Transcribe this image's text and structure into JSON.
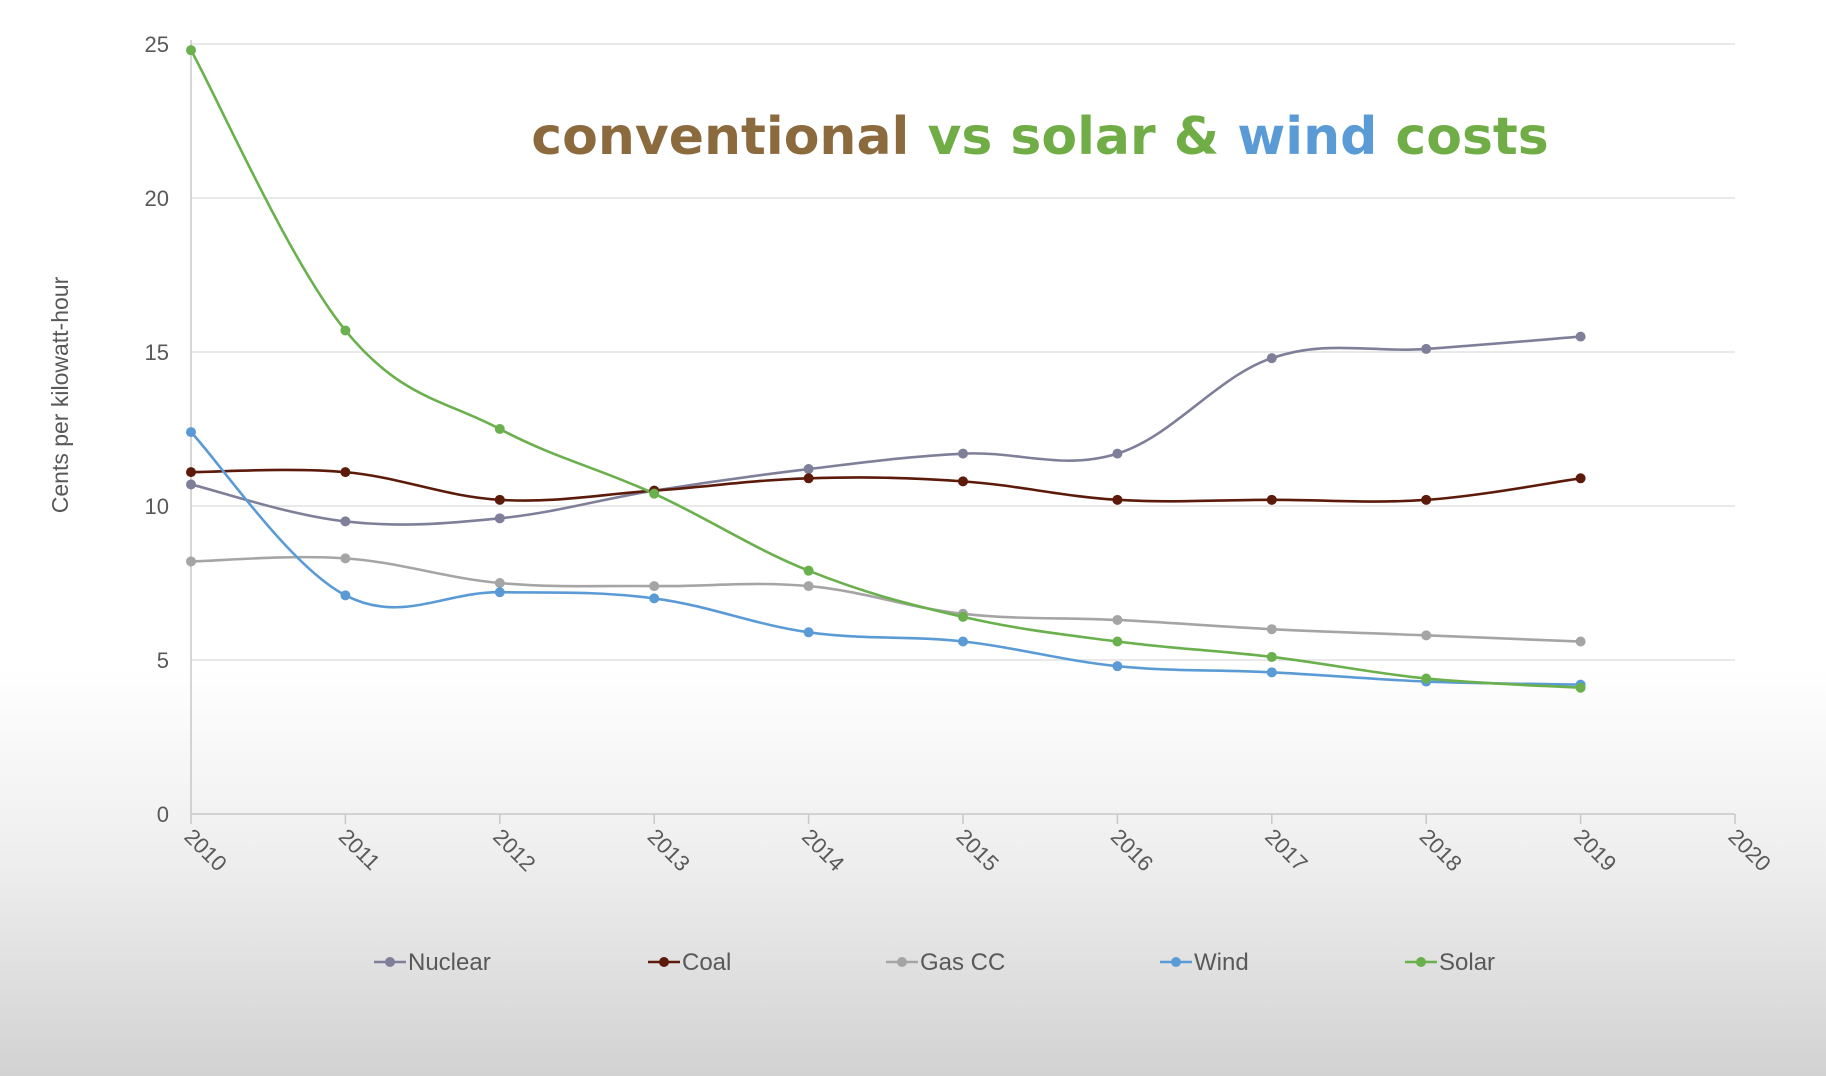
{
  "chart_data": {
    "type": "line",
    "title_parts": [
      {
        "text": "conventional",
        "color": "#8b6a3e"
      },
      {
        "text": " vs solar & ",
        "color": "#71ad47"
      },
      {
        "text": "wind",
        "color": "#5b9bd5"
      },
      {
        "text": " costs",
        "color": "#71ad47"
      }
    ],
    "xlabel": "",
    "ylabel": "Cents per kilowatt-hour",
    "x_ticks": [
      "2010",
      "2011",
      "2012",
      "2013",
      "2014",
      "2015",
      "2016",
      "2017",
      "2018",
      "2019",
      "2020"
    ],
    "x": [
      2010,
      2011,
      2012,
      2013,
      2014,
      2015,
      2016,
      2017,
      2018,
      2019
    ],
    "xlim": [
      2010,
      2020
    ],
    "ylim": [
      0,
      25
    ],
    "y_ticks": [
      0,
      5,
      10,
      15,
      20,
      25
    ],
    "grid": "horizontal",
    "legend_position": "bottom",
    "series": [
      {
        "name": "Nuclear",
        "color": "#7f7f9a",
        "values": [
          10.7,
          9.5,
          9.6,
          10.5,
          11.2,
          11.7,
          11.7,
          14.8,
          15.1,
          15.5
        ]
      },
      {
        "name": "Coal",
        "color": "#5c1a0b",
        "values": [
          11.1,
          11.1,
          10.2,
          10.5,
          10.9,
          10.8,
          10.2,
          10.2,
          10.2,
          10.9
        ]
      },
      {
        "name": "Gas CC",
        "color": "#a5a5a5",
        "values": [
          8.2,
          8.3,
          7.5,
          7.4,
          7.4,
          6.5,
          6.3,
          6.0,
          5.8,
          5.6
        ]
      },
      {
        "name": "Wind",
        "color": "#5b9bd5",
        "values": [
          12.4,
          7.1,
          7.2,
          7.0,
          5.9,
          5.6,
          4.8,
          4.6,
          4.3,
          4.2
        ]
      },
      {
        "name": "Solar",
        "color": "#6ab04c",
        "values": [
          24.8,
          15.7,
          12.5,
          10.4,
          7.9,
          6.4,
          5.6,
          5.1,
          4.4,
          4.1
        ]
      }
    ]
  }
}
